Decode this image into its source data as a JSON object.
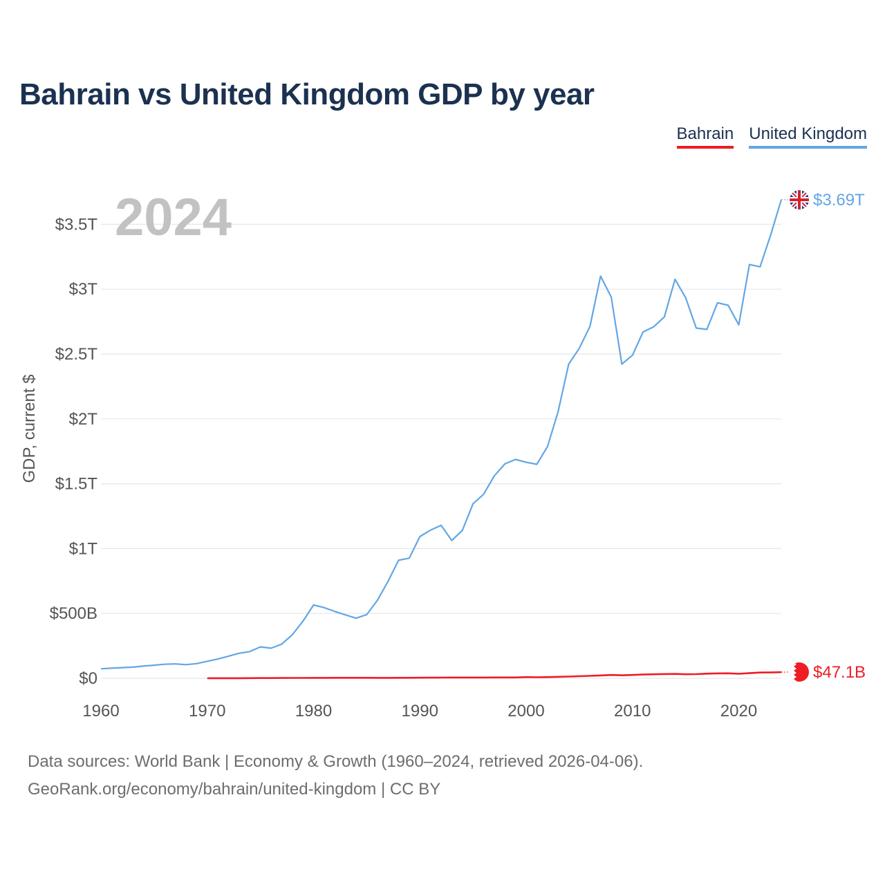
{
  "title": "Bahrain vs United Kingdom GDP by year",
  "legend": {
    "bahrain": "Bahrain",
    "uk": "United Kingdom"
  },
  "source": {
    "line1": "Data sources: World Bank | Economy & Growth (1960–2024, retrieved 2026-04-06).",
    "line2": "GeoRank.org/economy/bahrain/united-kingdom | CC BY"
  },
  "colors": {
    "bahrain": "#ee1c25",
    "uk": "#62a6e4",
    "grid": "#e6e6e6",
    "axis_text": "#555555",
    "year_label": "#c2c2c2"
  },
  "chart_data": {
    "type": "line",
    "title": "Bahrain vs United Kingdom GDP by year",
    "year_label": "2024",
    "ylabel": "GDP, current $",
    "xlabel": "",
    "xlim": [
      1960,
      2024
    ],
    "ylim": [
      0,
      3700
    ],
    "y_unit": "billions USD",
    "grid": true,
    "legend_position": "top-right",
    "x_ticks": [
      {
        "value": 1960,
        "label": "1960"
      },
      {
        "value": 1970,
        "label": "1970"
      },
      {
        "value": 1980,
        "label": "1980"
      },
      {
        "value": 1990,
        "label": "1990"
      },
      {
        "value": 2000,
        "label": "2000"
      },
      {
        "value": 2010,
        "label": "2010"
      },
      {
        "value": 2020,
        "label": "2020"
      }
    ],
    "y_ticks": [
      {
        "value": 0,
        "label": "$0"
      },
      {
        "value": 500,
        "label": "$500B"
      },
      {
        "value": 1000,
        "label": "$1T"
      },
      {
        "value": 1500,
        "label": "$1.5T"
      },
      {
        "value": 2000,
        "label": "$2T"
      },
      {
        "value": 2500,
        "label": "$2.5T"
      },
      {
        "value": 3000,
        "label": "$3T"
      },
      {
        "value": 3500,
        "label": "$3.5T"
      }
    ],
    "series": [
      {
        "name": "United Kingdom",
        "color": "#62a6e4",
        "end_label": "$3.69T",
        "start_year": 1960,
        "values": [
          73,
          78,
          82,
          86,
          94,
          101,
          108,
          111,
          105,
          113,
          131,
          148,
          170,
          193,
          206,
          242,
          232,
          263,
          336,
          439,
          565,
          545,
          515,
          489,
          463,
          491,
          601,
          746,
          910,
          926,
          1093,
          1142,
          1179,
          1062,
          1141,
          1345,
          1419,
          1560,
          1653,
          1687,
          1665,
          1650,
          1785,
          2054,
          2422,
          2544,
          2713,
          3100,
          2940,
          2422,
          2491,
          2670,
          2710,
          2786,
          3076,
          2935,
          2700,
          2690,
          2895,
          2876,
          2725,
          3190,
          3172,
          3417,
          3690
        ]
      },
      {
        "name": "Bahrain",
        "color": "#ee1c25",
        "end_label": "$47.1B",
        "start_year": 1970,
        "values": [
          0.3,
          0.4,
          0.5,
          0.6,
          0.9,
          1.4,
          1.7,
          2.2,
          2.5,
          2.7,
          3.1,
          3.4,
          3.7,
          3.7,
          3.8,
          3.6,
          3.1,
          3.3,
          3.5,
          3.9,
          4.4,
          4.7,
          5.2,
          5.6,
          5.8,
          6.0,
          6.1,
          6.3,
          6.2,
          6.6,
          9.1,
          8.0,
          9.0,
          11.1,
          13.2,
          16.0,
          18.5,
          21.7,
          25.7,
          22.9,
          25.7,
          28.8,
          30.7,
          32.5,
          33.4,
          31.1,
          32.2,
          35.5,
          37.7,
          38.5,
          34.6,
          39.3,
          44.4,
          44.9,
          47.1
        ]
      }
    ]
  }
}
